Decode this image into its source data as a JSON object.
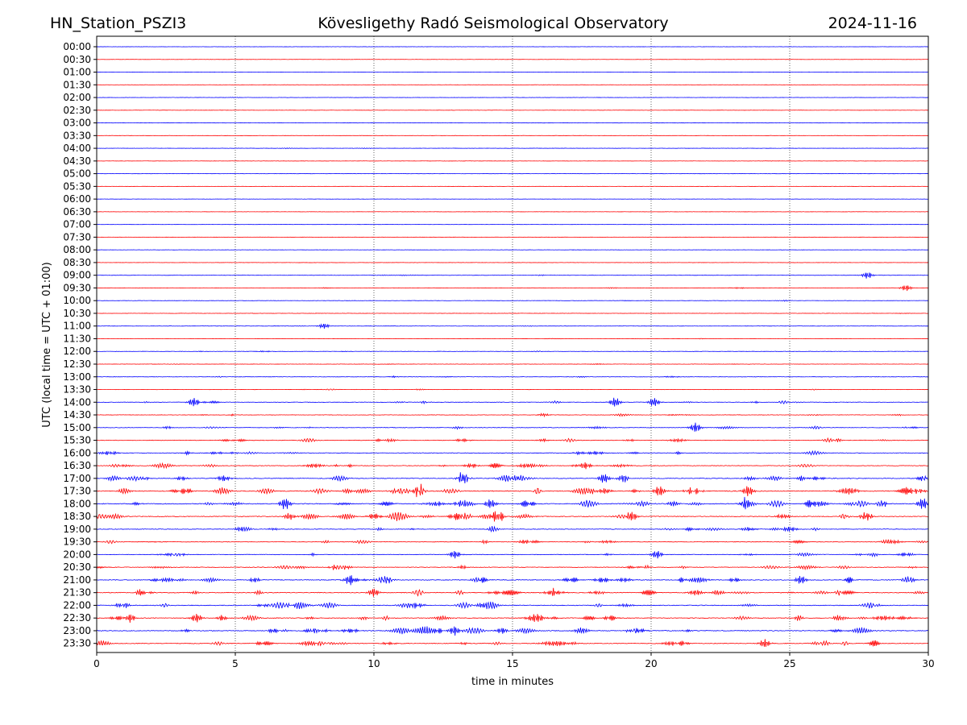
{
  "header": {
    "station": "HN_Station_PSZI3",
    "observatory": "Kövesligethy Radó Seismological Observatory",
    "date": "2024-11-16"
  },
  "chart_data": {
    "type": "line",
    "title": "Kövesligethy Radó Seismological Observatory",
    "xlabel": "time in minutes",
    "ylabel": "UTC (local time = UTC + 01:00)",
    "xlim": [
      0,
      30
    ],
    "x_ticks": [
      "0",
      "5",
      "10",
      "15",
      "20",
      "25",
      "30"
    ],
    "vertical_gridlines": [
      5,
      10,
      15,
      20,
      25
    ],
    "grid": "dotted vertical",
    "row_labels": [
      "00:00",
      "00:30",
      "01:00",
      "01:30",
      "02:00",
      "02:30",
      "03:00",
      "03:30",
      "04:00",
      "04:30",
      "05:00",
      "05:30",
      "06:00",
      "06:30",
      "07:00",
      "07:30",
      "08:00",
      "08:30",
      "09:00",
      "09:30",
      "10:00",
      "10:30",
      "11:00",
      "11:30",
      "12:00",
      "12:30",
      "13:00",
      "13:30",
      "14:00",
      "14:30",
      "15:00",
      "15:30",
      "16:00",
      "16:30",
      "17:00",
      "17:30",
      "18:00",
      "18:30",
      "19:00",
      "19:30",
      "20:00",
      "20:30",
      "21:00",
      "21:30",
      "22:00",
      "22:30",
      "23:00",
      "23:30"
    ],
    "row_colors": [
      "#0000ff",
      "#ff0000"
    ],
    "relative_activity": [
      0.05,
      0.05,
      0.06,
      0.05,
      0.08,
      0.05,
      0.05,
      0.04,
      0.08,
      0.06,
      0.05,
      0.04,
      0.05,
      0.04,
      0.04,
      0.04,
      0.06,
      0.07,
      0.12,
      0.14,
      0.12,
      0.1,
      0.1,
      0.12,
      0.14,
      0.14,
      0.18,
      0.14,
      0.35,
      0.32,
      0.38,
      0.45,
      0.48,
      0.55,
      0.7,
      0.85,
      0.85,
      0.8,
      0.55,
      0.48,
      0.48,
      0.55,
      0.72,
      0.75,
      0.7,
      0.72,
      0.75,
      0.7
    ],
    "events": [
      {
        "row": 18,
        "minute": 27.8,
        "amp": 1.5
      },
      {
        "row": 19,
        "minute": 29.2,
        "amp": 1.4
      },
      {
        "row": 22,
        "minute": 8.2,
        "amp": 1.2
      },
      {
        "row": 28,
        "minute": 3.5,
        "amp": 2.0
      },
      {
        "row": 28,
        "minute": 18.7,
        "amp": 2.2
      },
      {
        "row": 28,
        "minute": 20.1,
        "amp": 2.0
      },
      {
        "row": 30,
        "minute": 21.6,
        "amp": 2.2
      },
      {
        "row": 33,
        "minute": 17.5,
        "amp": 1.6
      },
      {
        "row": 34,
        "minute": 13.2,
        "amp": 2.4
      },
      {
        "row": 34,
        "minute": 18.3,
        "amp": 2.2
      },
      {
        "row": 35,
        "minute": 11.6,
        "amp": 2.4
      },
      {
        "row": 35,
        "minute": 20.3,
        "amp": 2.3
      },
      {
        "row": 35,
        "minute": 23.5,
        "amp": 2.4
      },
      {
        "row": 36,
        "minute": 6.8,
        "amp": 2.6
      },
      {
        "row": 36,
        "minute": 14.2,
        "amp": 2.2
      },
      {
        "row": 36,
        "minute": 23.4,
        "amp": 2.4
      },
      {
        "row": 36,
        "minute": 29.8,
        "amp": 2.6
      },
      {
        "row": 37,
        "minute": 14.5,
        "amp": 2.4
      },
      {
        "row": 37,
        "minute": 19.3,
        "amp": 2.2
      },
      {
        "row": 40,
        "minute": 12.9,
        "amp": 1.8
      },
      {
        "row": 40,
        "minute": 20.2,
        "amp": 1.8
      },
      {
        "row": 42,
        "minute": 9.1,
        "amp": 2.0
      },
      {
        "row": 42,
        "minute": 25.4,
        "amp": 2.0
      },
      {
        "row": 43,
        "minute": 10.0,
        "amp": 2.0
      },
      {
        "row": 45,
        "minute": 1.2,
        "amp": 2.0
      },
      {
        "row": 45,
        "minute": 3.6,
        "amp": 2.0
      },
      {
        "row": 46,
        "minute": 12.9,
        "amp": 2.2
      },
      {
        "row": 47,
        "minute": 24.1,
        "amp": 2.0
      }
    ]
  }
}
